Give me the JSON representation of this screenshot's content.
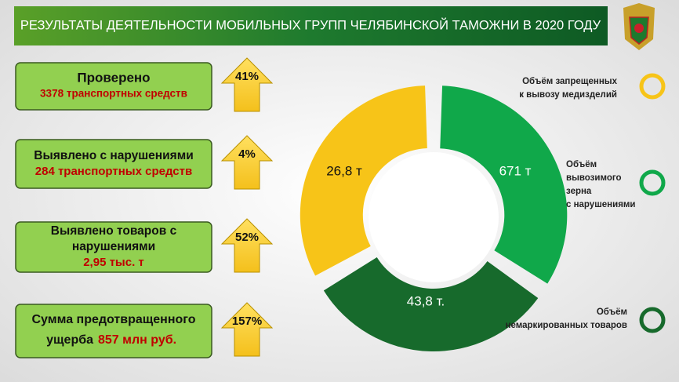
{
  "header": {
    "title": "РЕЗУЛЬТАТЫ ДЕЯТЕЛЬНОСТИ МОБИЛЬНЫХ ГРУПП ЧЕЛЯБИНСКОЙ ТАМОЖНИ В 2020 ГОДУ"
  },
  "cards": [
    {
      "lines": [
        "Проверено"
      ],
      "highlight": "3378 транспортных средств",
      "change": "41%"
    },
    {
      "lines": [
        "Выявлено с нарушениями"
      ],
      "highlight": "284 транспортных  средств",
      "change": "4%"
    },
    {
      "lines": [
        "Выявлено товаров с",
        "нарушениями"
      ],
      "highlight": "2,95 тыс. т",
      "change": "52%"
    },
    {
      "lines": [
        "Сумма предотвращенного",
        "ущерба"
      ],
      "highlight": "857 млн руб.",
      "change": "157%"
    }
  ],
  "donut": {
    "labels": [
      "671 т",
      "43,8 т.",
      "26,8 т"
    ]
  },
  "legend": [
    {
      "lines": [
        "Объём запрещенных",
        "к вывозу медизделий"
      ]
    },
    {
      "lines": [
        "Объём",
        "вывозимого",
        "зерна",
        "с нарушениями"
      ]
    },
    {
      "lines": [
        "Объём",
        "немаркированных товаров"
      ]
    }
  ]
}
